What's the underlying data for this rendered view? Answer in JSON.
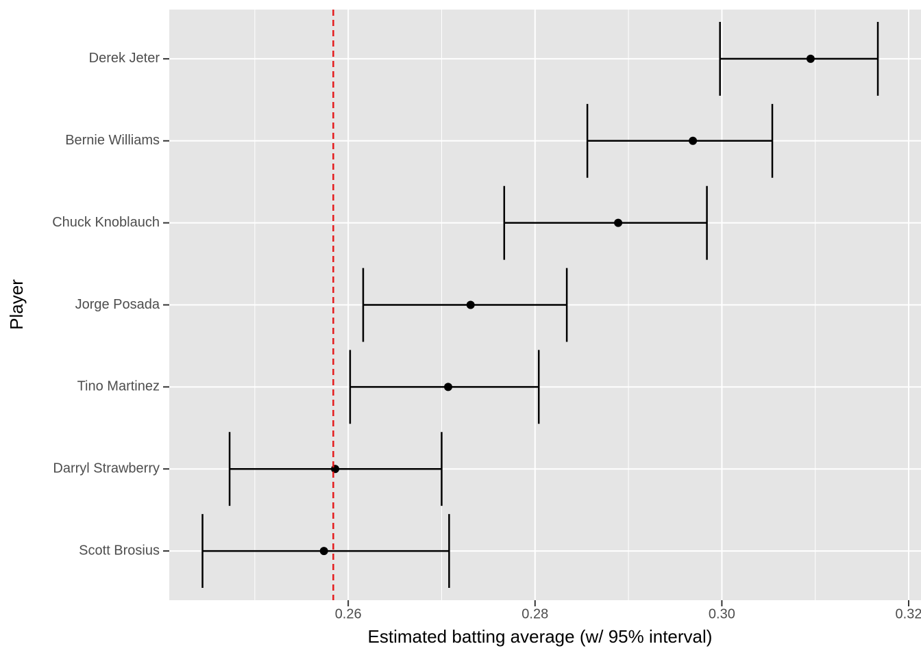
{
  "chart_data": {
    "type": "pointrange",
    "x_label": "Estimated batting average (w/ 95% interval)",
    "y_label": "Player",
    "categories": [
      "Derek Jeter",
      "Bernie Williams",
      "Chuck Knoblauch",
      "Jorge Posada",
      "Tino Martinez",
      "Darryl Strawberry",
      "Scott Brosius"
    ],
    "values": [
      0.3095,
      0.2969,
      0.2889,
      0.2731,
      0.2707,
      0.2586,
      0.2574
    ],
    "lower": [
      0.2998,
      0.2856,
      0.2767,
      0.2616,
      0.2602,
      0.2473,
      0.2444
    ],
    "upper": [
      0.3167,
      0.3054,
      0.2984,
      0.2834,
      0.2804,
      0.27,
      0.2708
    ],
    "color": "#000000",
    "reference_line": {
      "value": 0.2584,
      "color": "#e41a1c",
      "dashed": true
    },
    "xlim": [
      0.24084,
      0.32132
    ],
    "xticks": [
      0.26,
      0.28,
      {
        "value": 0.3,
        "label": "0.30"
      },
      0.32
    ],
    "minor_xticks": [
      0.25,
      0.27,
      0.29,
      0.31
    ],
    "grid": true
  }
}
